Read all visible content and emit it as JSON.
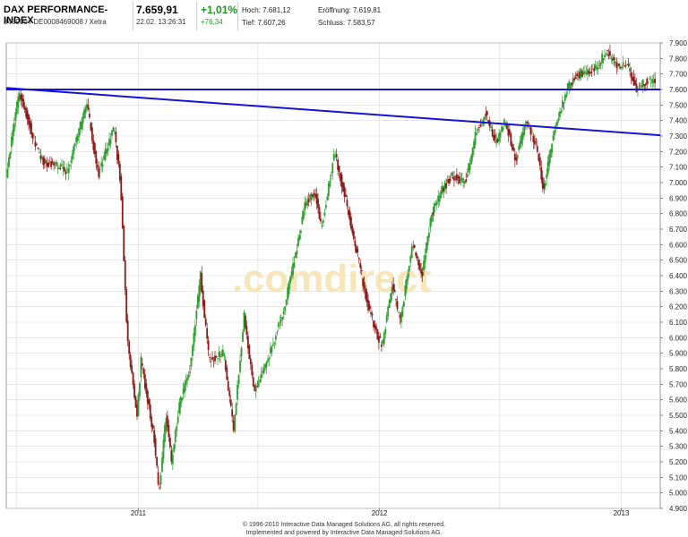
{
  "header": {
    "title": "DAX PERFORMANCE-INDEX",
    "subtitle": "846900 / DE0008469008 / Xetra",
    "price": "7.659,91",
    "datetime": "22.02. 13:26:31",
    "change_pct": "+1,01%",
    "change_abs": "+76,34",
    "high_label": "Hoch: 7.681,12",
    "open_label": "Eröffnung: 7.619,81",
    "low_label": "Tief: 7.607,26",
    "close_label": "Schluss: 7.583,57"
  },
  "watermark": ".comdirect",
  "footer": {
    "line1": "© 1996-2010 Interactive Data Managed Solutions AG, all rights reserved.",
    "line2": "Implemented and powered by Interactive Data Managed Solutions AG."
  },
  "colors": {
    "up": "#2e9e2e",
    "down": "#8b1a1a",
    "trendline": "#1414d2",
    "grid": "#d9d9d9",
    "accent_green": "#1a9c1a"
  },
  "chart_data": {
    "type": "candlestick",
    "x_tick_labels": [
      "2011",
      "2012",
      "2013"
    ],
    "y_tick_labels": [
      "4.900",
      "5.000",
      "5.100",
      "5.200",
      "5.300",
      "5.400",
      "5.500",
      "5.600",
      "5.700",
      "5.800",
      "5.900",
      "6.000",
      "6.100",
      "6.200",
      "6.300",
      "6.400",
      "6.500",
      "6.600",
      "6.700",
      "6.800",
      "6.900",
      "7.000",
      "7.100",
      "7.200",
      "7.300",
      "7.400",
      "7.500",
      "7.600",
      "7.700",
      "7.800",
      "7.900"
    ],
    "ylim": [
      4900,
      7900
    ],
    "xlim": [
      "2010-06-15",
      "2013-03-01"
    ],
    "grid": true,
    "price_path": [
      [
        "2010-06-15",
        7050
      ],
      [
        "2010-07-01",
        7500
      ],
      [
        "2010-07-06",
        7580
      ],
      [
        "2010-08-05",
        7150
      ],
      [
        "2010-09-15",
        7080
      ],
      [
        "2010-10-15",
        7500
      ],
      [
        "2010-11-01",
        7050
      ],
      [
        "2010-11-25",
        7350
      ],
      [
        "2010-12-05",
        7000
      ],
      [
        "2010-12-15",
        6000
      ],
      [
        "2010-12-30",
        5500
      ],
      [
        "2011-01-05",
        5850
      ],
      [
        "2011-01-25",
        5350
      ],
      [
        "2011-02-01",
        5000
      ],
      [
        "2011-02-12",
        5500
      ],
      [
        "2011-02-20",
        5200
      ],
      [
        "2011-03-05",
        5600
      ],
      [
        "2011-03-20",
        5800
      ],
      [
        "2011-04-05",
        6400
      ],
      [
        "2011-04-18",
        5850
      ],
      [
        "2011-05-10",
        5900
      ],
      [
        "2011-05-25",
        5400
      ],
      [
        "2011-06-10",
        6150
      ],
      [
        "2011-06-25",
        5650
      ],
      [
        "2011-07-15",
        5850
      ],
      [
        "2011-08-10",
        6200
      ],
      [
        "2011-08-25",
        6500
      ],
      [
        "2011-09-10",
        6850
      ],
      [
        "2011-09-25",
        6950
      ],
      [
        "2011-10-05",
        6700
      ],
      [
        "2011-10-25",
        7200
      ],
      [
        "2011-11-10",
        6900
      ],
      [
        "2011-11-25",
        6600
      ],
      [
        "2011-12-15",
        6200
      ],
      [
        "2011-12-30",
        6000
      ],
      [
        "2012-01-05",
        5950
      ],
      [
        "2012-01-20",
        6350
      ],
      [
        "2012-02-01",
        6100
      ],
      [
        "2012-02-20",
        6600
      ],
      [
        "2012-03-05",
        6400
      ],
      [
        "2012-03-20",
        6800
      ],
      [
        "2012-04-05",
        6950
      ],
      [
        "2012-04-20",
        7050
      ],
      [
        "2012-05-10",
        7000
      ],
      [
        "2012-05-25",
        7300
      ],
      [
        "2012-06-10",
        7450
      ],
      [
        "2012-06-25",
        7250
      ],
      [
        "2012-07-10",
        7400
      ],
      [
        "2012-07-25",
        7150
      ],
      [
        "2012-08-10",
        7400
      ],
      [
        "2012-08-25",
        7250
      ],
      [
        "2012-09-05",
        6950
      ],
      [
        "2012-09-20",
        7300
      ],
      [
        "2012-10-10",
        7600
      ],
      [
        "2012-10-25",
        7700
      ],
      [
        "2012-11-10",
        7700
      ],
      [
        "2012-11-25",
        7750
      ],
      [
        "2012-12-10",
        7850
      ],
      [
        "2012-12-25",
        7750
      ],
      [
        "2013-01-10",
        7750
      ],
      [
        "2013-01-25",
        7600
      ],
      [
        "2013-02-05",
        7650
      ],
      [
        "2013-02-22",
        7659.91
      ]
    ],
    "trendlines": [
      {
        "from": [
          "2010-06-15",
          7610
        ],
        "to": [
          "2013-03-01",
          7305
        ]
      },
      {
        "from": [
          "2010-06-15",
          7600
        ],
        "to": [
          "2013-03-01",
          7600
        ]
      }
    ]
  }
}
